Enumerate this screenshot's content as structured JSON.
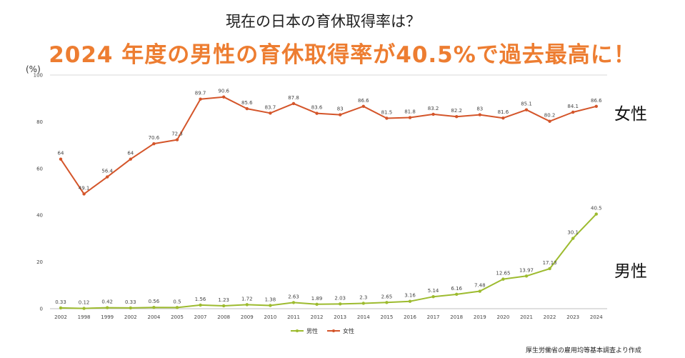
{
  "header": {
    "title": "現在の日本の育休取得率は？",
    "headline": "2024 年度の男性の育休取得率が40.5%で過去最高に！"
  },
  "labels": {
    "female": "女性",
    "male": "男性"
  },
  "source": "厚生労働省の雇用均等基本調査より作成",
  "colors": {
    "female": "#d4552a",
    "male": "#9dbb2f",
    "headline": "#ed7d31"
  },
  "chart_data": {
    "type": "line",
    "title": "",
    "xlabel": "",
    "ylabel": "(%)",
    "ylim": [
      0,
      100
    ],
    "yticks": [
      "0",
      "20",
      "40",
      "60",
      "80",
      "100"
    ],
    "grid": false,
    "legend": "bottom",
    "categories": [
      "2002",
      "1998",
      "1999",
      "2002",
      "2004",
      "2005",
      "2007",
      "2008",
      "2009",
      "2010",
      "2011",
      "2012",
      "2013",
      "2014",
      "2015",
      "2016",
      "2017",
      "2018",
      "2019",
      "2020",
      "2021",
      "2022",
      "2023",
      "2024"
    ],
    "series": [
      {
        "name": "男性",
        "color": "#9dbb2f",
        "values": [
          0.33,
          0.12,
          0.42,
          0.33,
          0.56,
          0.5,
          1.56,
          1.23,
          1.72,
          1.38,
          2.63,
          1.89,
          2.03,
          2.3,
          2.65,
          3.16,
          5.14,
          6.16,
          7.48,
          12.65,
          13.97,
          17.13,
          30.1,
          40.5
        ],
        "labels": [
          "0.33",
          "0.12",
          "0.42",
          "0.33",
          "0.56",
          "0.5",
          "1.56",
          "1.23",
          "1.72",
          "1.38",
          "2.63",
          "1.89",
          "2.03",
          "2.3",
          "2.65",
          "3.16",
          "5.14",
          "6.16",
          "7.48",
          "12.65",
          "13.97",
          "17.13",
          "30.1",
          "40.5"
        ]
      },
      {
        "name": "女性",
        "color": "#d4552a",
        "values": [
          64,
          49.1,
          56.4,
          64,
          70.6,
          72.3,
          89.7,
          90.6,
          85.6,
          83.7,
          87.8,
          83.6,
          83,
          86.6,
          81.5,
          81.8,
          83.2,
          82.2,
          83,
          81.6,
          85.1,
          80.2,
          84.1,
          86.6
        ],
        "labels": [
          "64",
          "49.1",
          "56.4",
          "64",
          "70.6",
          "72.3",
          "89.7",
          "90.6",
          "85.6",
          "83.7",
          "87.8",
          "83.6",
          "83",
          "86.6",
          "81.5",
          "81.8",
          "83.2",
          "82.2",
          "83",
          "81.6",
          "85.1",
          "80.2",
          "84.1",
          "86.6"
        ]
      }
    ]
  }
}
